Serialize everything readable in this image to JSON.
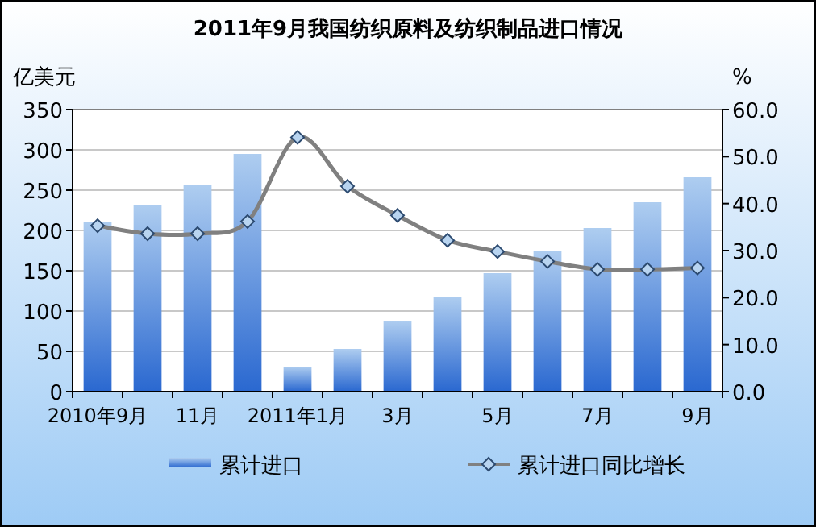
{
  "chart_data": {
    "type": "bar",
    "title": "2011年9月我国纺织原料及纺织制品进口情况",
    "ylabel": "亿美元",
    "y2label": "%",
    "categories": [
      "2010年9月",
      null,
      "11月",
      null,
      "2011年1月",
      null,
      "3月",
      null,
      "5月",
      null,
      "7月",
      null,
      "9月"
    ],
    "ylim": [
      0,
      350
    ],
    "yticks": [
      0,
      50,
      100,
      150,
      200,
      250,
      300,
      350
    ],
    "y2lim": [
      0,
      60
    ],
    "y2ticks": [
      {
        "value": 0,
        "label": "0.0"
      },
      {
        "value": 10,
        "label": "10.0"
      },
      {
        "value": 20,
        "label": "20.0"
      },
      {
        "value": 30,
        "label": "30.0"
      },
      {
        "value": 40,
        "label": "40.0"
      },
      {
        "value": 50,
        "label": "50.0"
      },
      {
        "value": 60,
        "label": "60.0"
      }
    ],
    "grid": "y",
    "legend": "bottom",
    "series": [
      {
        "name": "累计进口",
        "color": "#2a68d0",
        "values": [
          211,
          232,
          256,
          295,
          31,
          53,
          88,
          118,
          147,
          175,
          203,
          235,
          266
        ]
      },
      {
        "name": "累计进口同比增长",
        "type": "line",
        "axis": "y2",
        "color": "#808080",
        "marker": "diamond",
        "values": [
          35.3,
          33.6,
          33.6,
          36.2,
          54.1,
          43.7,
          37.5,
          32.2,
          29.8,
          27.7,
          26.0,
          26.0,
          26.3
        ]
      }
    ]
  }
}
